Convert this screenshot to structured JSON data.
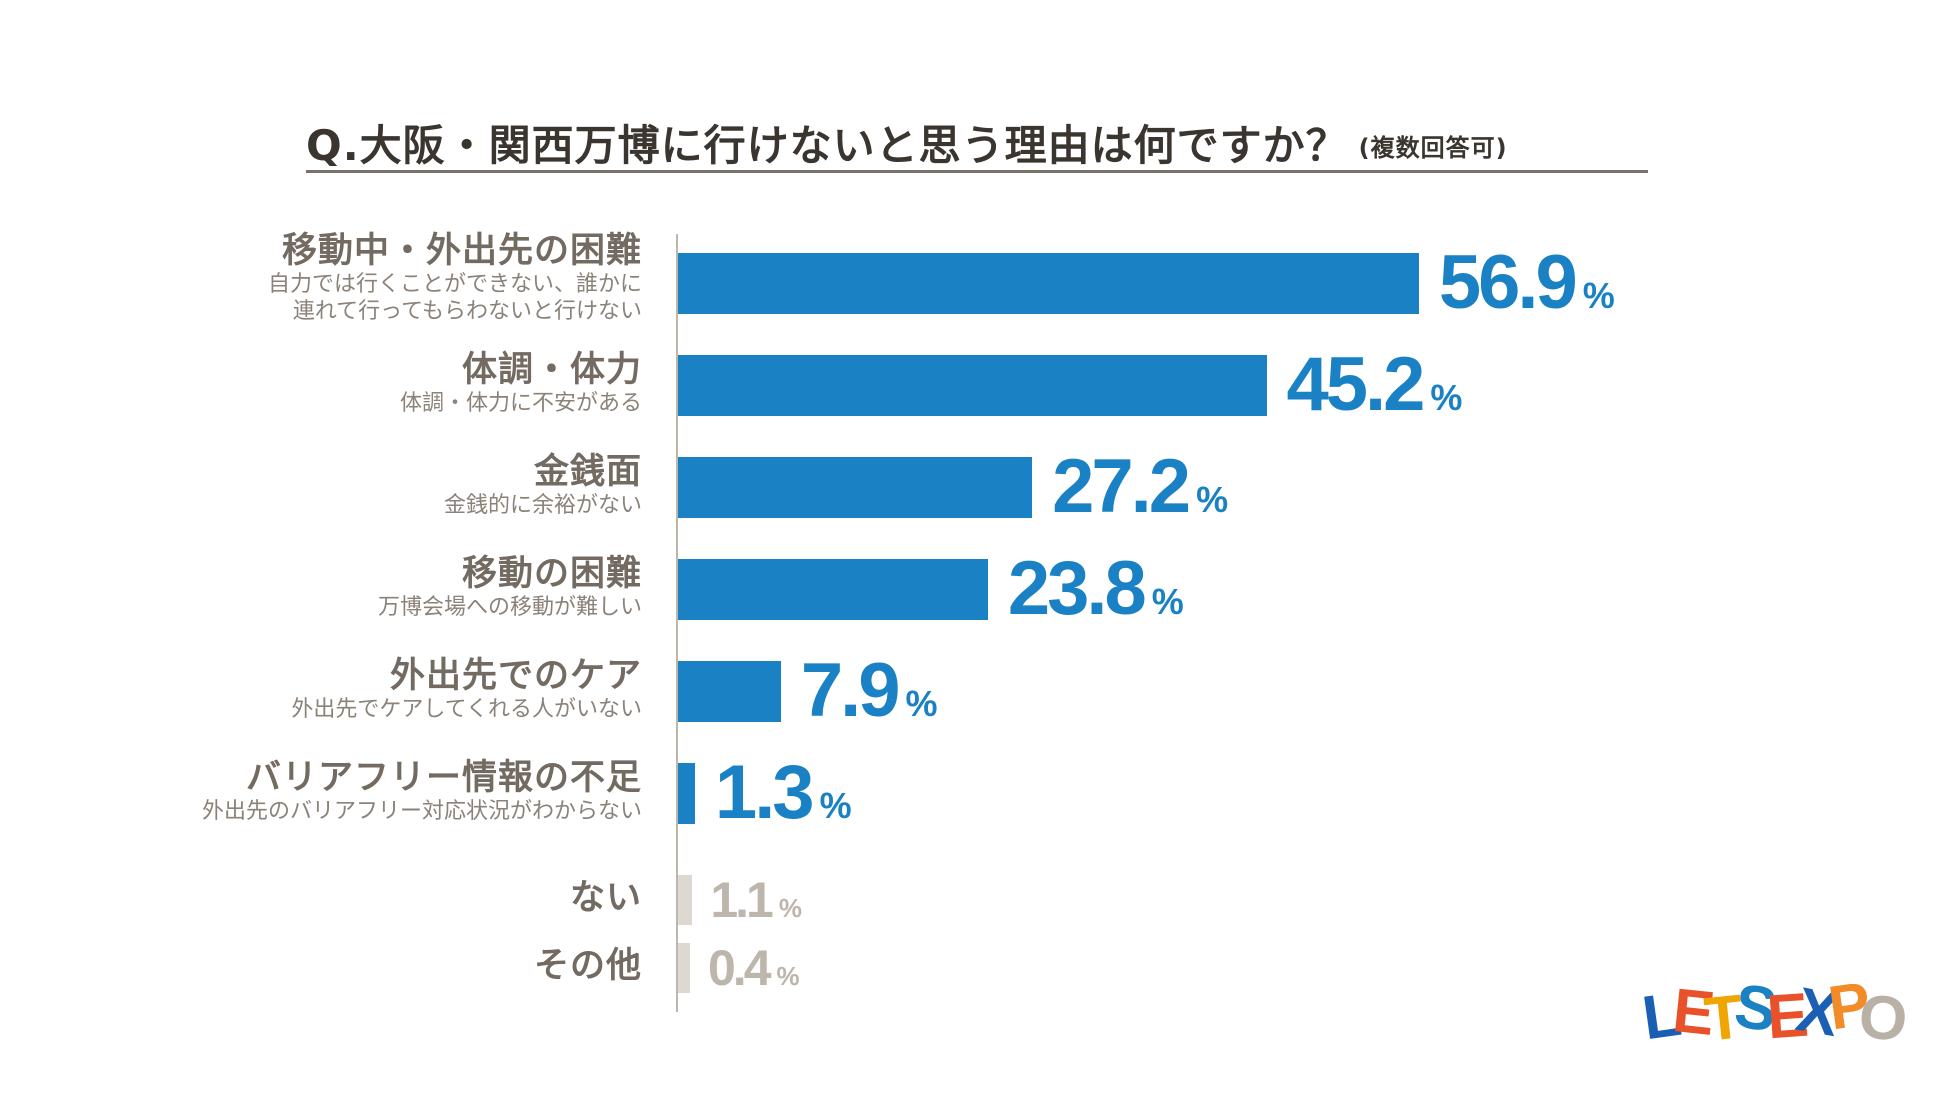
{
  "chart_data": {
    "type": "bar",
    "orientation": "horizontal",
    "title": "Q.大阪・関西万博に行けないと思う理由は何ですか？",
    "subtitle": "(複数回答可)",
    "unit": "%",
    "categories": [
      {
        "name": "移動中・外出先の困難",
        "desc": [
          "自力では行くことができない、誰かに",
          "連れて行ってもらわないと行けない"
        ],
        "value": 56.9,
        "value_label": "56.9",
        "color": "#1a81c5"
      },
      {
        "name": "体調・体力",
        "desc": [
          "体調・体力に不安がある"
        ],
        "value": 45.2,
        "value_label": "45.2",
        "color": "#1a81c5"
      },
      {
        "name": "金銭面",
        "desc": [
          "金銭的に余裕がない"
        ],
        "value": 27.2,
        "value_label": "27.2",
        "color": "#1a81c5"
      },
      {
        "name": "移動の困難",
        "desc": [
          "万博会場への移動が難しい"
        ],
        "value": 23.8,
        "value_label": "23.8",
        "color": "#1a81c5"
      },
      {
        "name": "外出先でのケア",
        "desc": [
          "外出先でケアしてくれる人がいない"
        ],
        "value": 7.9,
        "value_label": "7.9",
        "color": "#1a81c5"
      },
      {
        "name": "バリアフリー情報の不足",
        "desc": [
          "外出先のバリアフリー対応状況がわからない"
        ],
        "value": 1.3,
        "value_label": "1.3",
        "color": "#1a81c5"
      },
      {
        "name": "ない",
        "desc": [],
        "value": 1.1,
        "value_label": "1.1",
        "color": "#ddd8d2"
      },
      {
        "name": "その他",
        "desc": [],
        "value": 0.4,
        "value_label": "0.4",
        "color": "#ddd8d2"
      }
    ]
  },
  "logo": {
    "text": "LET'S EXPO",
    "letters": [
      {
        "ch": "L",
        "color": "#1a5fb4"
      },
      {
        "ch": "E",
        "color": "#e8512a"
      },
      {
        "ch": "T",
        "color": "#f0a500"
      },
      {
        "ch": "S",
        "color": "#1a81c5"
      },
      {
        "ch": "E",
        "color": "#e8512a"
      },
      {
        "ch": "X",
        "color": "#1a5fb4"
      },
      {
        "ch": "P",
        "color": "#f28c28"
      },
      {
        "ch": "O",
        "color": "#b9b0a6"
      }
    ]
  }
}
